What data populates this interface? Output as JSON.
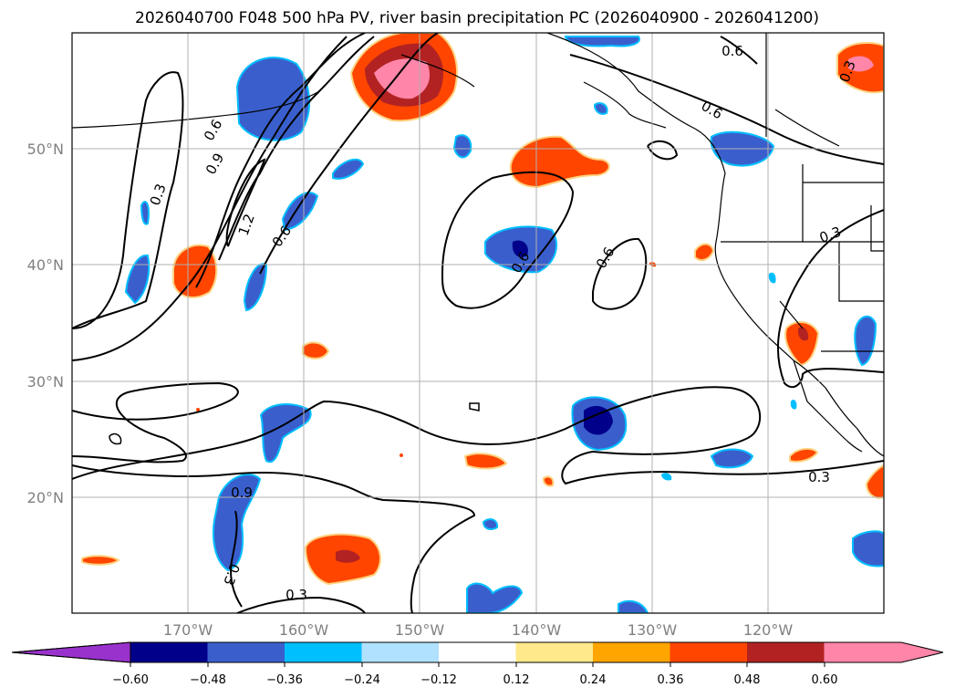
{
  "title": "2026040700 F048 500 hPa PV, river basin precipitation PC (2026040900 - 2026041200)",
  "map": {
    "lat_range": [
      10,
      60
    ],
    "lon_range": [
      -180,
      -110
    ],
    "lat_labels": [
      "20°N",
      "30°N",
      "40°N",
      "50°N"
    ],
    "lat_values": [
      20,
      30,
      40,
      50
    ],
    "lon_labels": [
      "170°W",
      "160°W",
      "150°W",
      "140°W",
      "130°W",
      "120°W"
    ],
    "lon_values": [
      -170,
      -160,
      -150,
      -140,
      -130,
      -120
    ],
    "contour_labels": [
      "0.3",
      "0.6",
      "0.9",
      "1.2",
      "0.6",
      "0.3",
      "0.6",
      "0.3",
      "0.3",
      "0.3",
      "0.6",
      "0.6",
      "0.6",
      "0.3",
      "0.9"
    ]
  },
  "colorbar": {
    "colors": [
      "#9932cc",
      "#00008b",
      "#3a5fcd",
      "#00bfff",
      "#b0e2ff",
      "#ffffff",
      "#ffe98a",
      "#ffa500",
      "#ff4500",
      "#b22222",
      "#ff85a9",
      "#ff85a9"
    ],
    "tick_labels": [
      "−0.60",
      "−0.48",
      "−0.36",
      "−0.24",
      "−0.12",
      "0.12",
      "0.24",
      "0.36",
      "0.48",
      "0.60"
    ]
  }
}
